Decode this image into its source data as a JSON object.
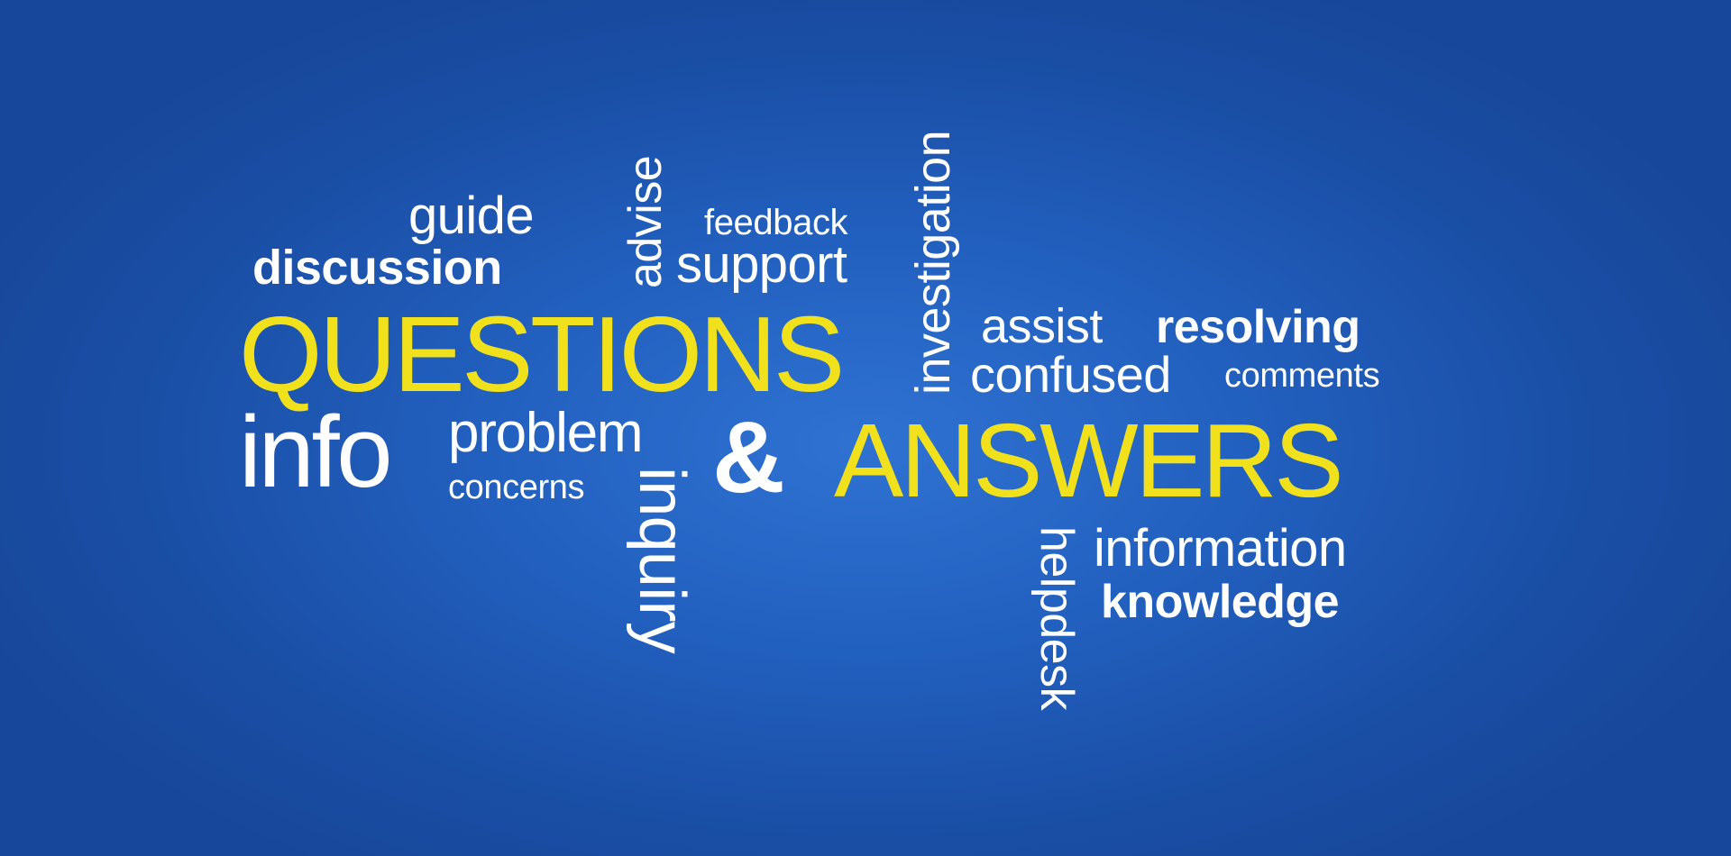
{
  "colors": {
    "background": "#2260bf",
    "white": "#ffffff",
    "yellow": "#f1e11c"
  },
  "words": {
    "guide": "guide",
    "discussion": "discussion",
    "advise": "advise",
    "feedback": "feedback",
    "support": "support",
    "investigation": "investigation",
    "questions": "QUESTIONS",
    "assist": "assist",
    "resolving": "resolving",
    "confused": "confused",
    "comments": "comments",
    "info": "info",
    "problem": "problem",
    "concerns": "concerns",
    "inquiry": "inquiry",
    "ampersand": "&",
    "answers": "ANSWERS",
    "helpdesk": "helpdesk",
    "information": "information",
    "knowledge": "knowledge"
  }
}
